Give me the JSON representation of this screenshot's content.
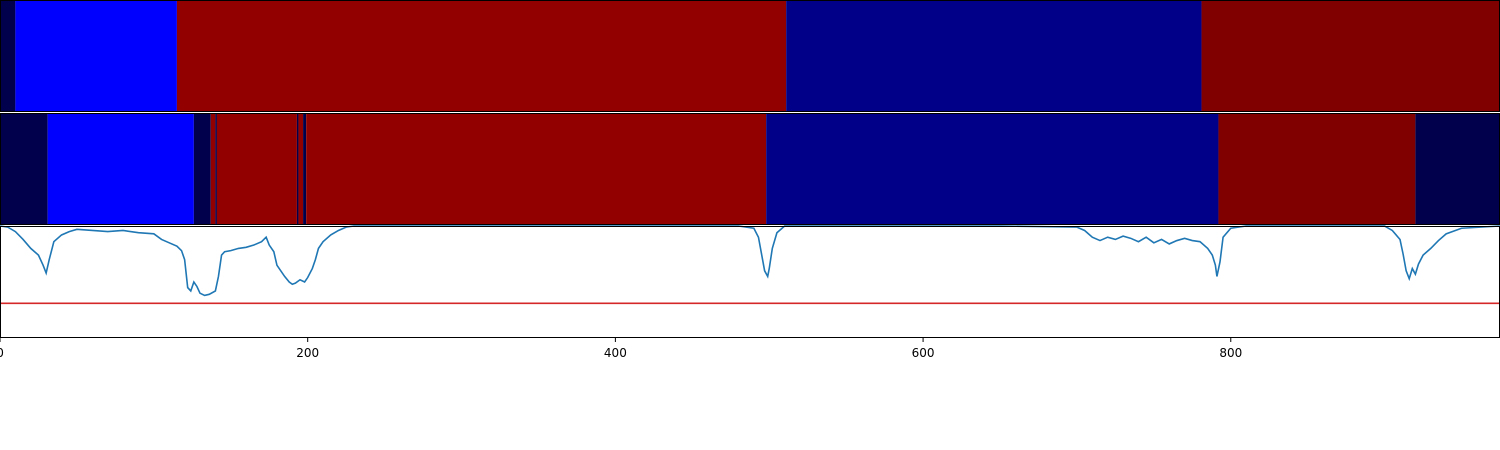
{
  "chart_data": [
    {
      "type": "heatmap",
      "panel": "top-strip",
      "xlim": [
        0,
        975
      ],
      "segments": [
        {
          "x0": 0,
          "x1": 10,
          "color": "#00004d"
        },
        {
          "x0": 10,
          "x1": 115,
          "color": "#0000ff"
        },
        {
          "x0": 115,
          "x1": 511,
          "color": "#930000"
        },
        {
          "x0": 511,
          "x1": 781,
          "color": "#000088"
        },
        {
          "x0": 781,
          "x1": 975,
          "color": "#800000"
        }
      ]
    },
    {
      "type": "heatmap",
      "panel": "middle-strip",
      "xlim": [
        0,
        975
      ],
      "segments": [
        {
          "x0": 0,
          "x1": 31,
          "color": "#00004d"
        },
        {
          "x0": 31,
          "x1": 126,
          "color": "#0000ff"
        },
        {
          "x0": 126,
          "x1": 137,
          "color": "#00004d"
        },
        {
          "x0": 137,
          "x1": 140,
          "color": "#930000"
        },
        {
          "x0": 140,
          "x1": 141,
          "color": "#00004d"
        },
        {
          "x0": 141,
          "x1": 193,
          "color": "#930000"
        },
        {
          "x0": 193,
          "x1": 194,
          "color": "#00004d"
        },
        {
          "x0": 194,
          "x1": 197,
          "color": "#930000"
        },
        {
          "x0": 197,
          "x1": 199,
          "color": "#00004d"
        },
        {
          "x0": 199,
          "x1": 498,
          "color": "#930000"
        },
        {
          "x0": 498,
          "x1": 792,
          "color": "#000088"
        },
        {
          "x0": 792,
          "x1": 920,
          "color": "#800000"
        },
        {
          "x0": 920,
          "x1": 975,
          "color": "#00004d"
        }
      ]
    },
    {
      "type": "line",
      "panel": "bottom-line",
      "xlim": [
        0,
        975
      ],
      "ylim": [
        0,
        1
      ],
      "threshold": {
        "value": 0.31,
        "color": "#d62728"
      },
      "series_color": "#1f77b4",
      "x": [
        0,
        5,
        10,
        15,
        20,
        25,
        28,
        30,
        32,
        35,
        40,
        45,
        50,
        60,
        70,
        80,
        90,
        100,
        105,
        110,
        115,
        118,
        120,
        122,
        124,
        126,
        128,
        130,
        133,
        136,
        140,
        142,
        144,
        146,
        150,
        155,
        160,
        165,
        170,
        173,
        175,
        178,
        180,
        185,
        188,
        190,
        192,
        195,
        198,
        200,
        203,
        205,
        207,
        210,
        215,
        220,
        225,
        230,
        250,
        300,
        350,
        400,
        450,
        480,
        490,
        493,
        495,
        497,
        499,
        500,
        502,
        505,
        510,
        550,
        600,
        650,
        700,
        705,
        710,
        715,
        720,
        725,
        730,
        735,
        740,
        745,
        750,
        755,
        760,
        765,
        770,
        775,
        780,
        785,
        788,
        790,
        791,
        793,
        795,
        800,
        810,
        850,
        900,
        905,
        910,
        912,
        914,
        916,
        918,
        920,
        922,
        925,
        930,
        935,
        940,
        950,
        975
      ],
      "y": [
        1.0,
        0.99,
        0.95,
        0.88,
        0.8,
        0.74,
        0.65,
        0.58,
        0.7,
        0.86,
        0.92,
        0.95,
        0.97,
        0.96,
        0.95,
        0.96,
        0.94,
        0.93,
        0.88,
        0.85,
        0.82,
        0.78,
        0.7,
        0.45,
        0.42,
        0.5,
        0.46,
        0.4,
        0.38,
        0.39,
        0.42,
        0.55,
        0.74,
        0.77,
        0.78,
        0.8,
        0.81,
        0.83,
        0.86,
        0.9,
        0.83,
        0.77,
        0.65,
        0.55,
        0.5,
        0.48,
        0.49,
        0.52,
        0.5,
        0.54,
        0.62,
        0.7,
        0.8,
        0.86,
        0.92,
        0.96,
        0.99,
        1.0,
        1.0,
        1.0,
        1.0,
        1.0,
        1.0,
        1.0,
        0.98,
        0.9,
        0.75,
        0.6,
        0.55,
        0.62,
        0.8,
        0.94,
        1.0,
        1.0,
        1.0,
        1.0,
        0.99,
        0.96,
        0.9,
        0.87,
        0.9,
        0.88,
        0.91,
        0.89,
        0.86,
        0.9,
        0.85,
        0.88,
        0.84,
        0.87,
        0.89,
        0.87,
        0.86,
        0.8,
        0.74,
        0.65,
        0.55,
        0.68,
        0.9,
        0.98,
        1.0,
        1.0,
        1.0,
        0.96,
        0.88,
        0.75,
        0.6,
        0.53,
        0.62,
        0.57,
        0.66,
        0.74,
        0.8,
        0.87,
        0.93,
        0.98,
        1.0
      ]
    }
  ],
  "axis": {
    "x_ticks": [
      0,
      200,
      400,
      600,
      800
    ],
    "x_tick_labels": [
      "0",
      "200",
      "400",
      "600",
      "800"
    ]
  }
}
